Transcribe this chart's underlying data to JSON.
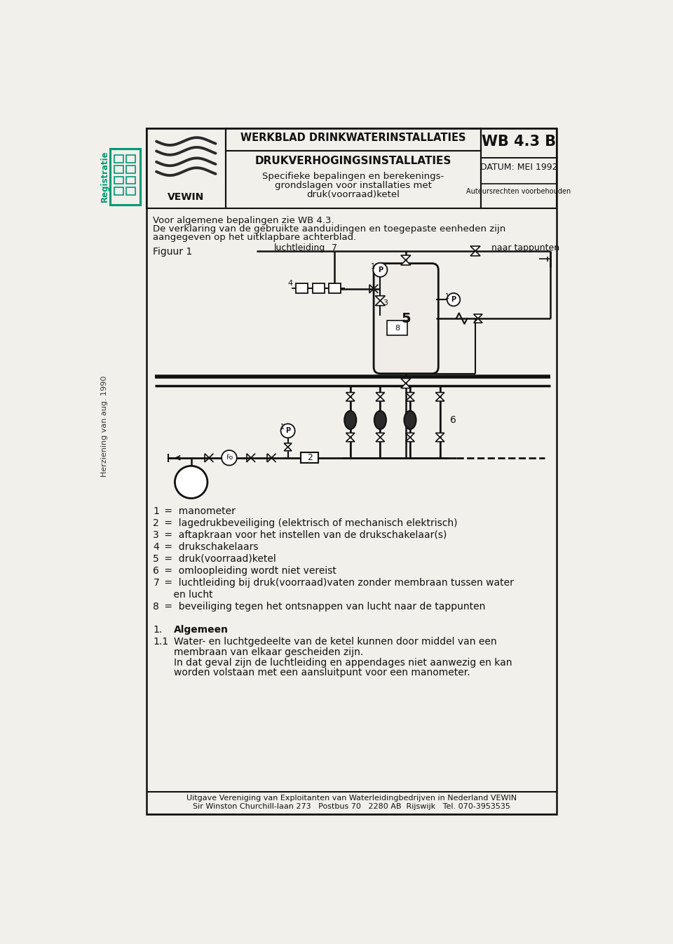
{
  "page_bg": "#f2f0eb",
  "border_color": "#111111",
  "header": {
    "wb_number": "WB 4.3 B",
    "title_top": "WERKBLAD DRINKWATERINSTALLATIES",
    "title_main": "DRUKVERHOGINGSINSTALLATIES",
    "title_sub1": "Specifieke bepalingen en berekenings-",
    "title_sub2": "grondslagen voor installaties met",
    "title_sub3": "druk(voorraad)ketel",
    "datum": "DATUM: MEI 1992",
    "auteursrechten": "Auteursrechten voorbehouden",
    "vewin": "VEWIN"
  },
  "intro_text": [
    "Voor algemene bepalingen zie WB 4.3.",
    "De verklaring van de gebruikte aanduidingen en toegepaste eenheden zijn",
    "aangegeven op het uitklapbare achterblad."
  ],
  "figuur_label": "Figuur 1",
  "luchtleiding_label": "luchtleiding",
  "label_7": "7",
  "naar_tappunten_label": "naar tappunten",
  "legend_items": [
    [
      "1",
      " =  manometer"
    ],
    [
      "2",
      " =  lagedrukbeveiliging (elektrisch of mechanisch elektrisch)"
    ],
    [
      "3",
      " =  aftapkraan voor het instellen van de drukschakelaar(s)"
    ],
    [
      "4",
      " =  drukschakelaars"
    ],
    [
      "5",
      " =  druk(voorraad)ketel"
    ],
    [
      "6",
      " =  omloopleiding wordt niet vereist"
    ],
    [
      "7",
      " =  luchtleiding bij druk(voorraad)vaten zonder membraan tussen water"
    ],
    [
      "",
      "    en lucht"
    ],
    [
      "8",
      " =  beveiliging tegen het ontsnappen van lucht naar de tappunten"
    ]
  ],
  "section1_num": "1.",
  "section1_title": "Algemeen",
  "section11_num": "1.1",
  "section11_lines": [
    "Water- en luchtgedeelte van de ketel kunnen door middel van een",
    "membraan van elkaar gescheiden zijn.",
    "In dat geval zijn de luchtleiding en appendages niet aanwezig en kan",
    "worden volstaan met een aansluitpunt voor een manometer."
  ],
  "footer_line1": "Uitgave Vereniging van Exploitanten van Waterleidingbedrijven in Nederland VEWIN",
  "footer_line2": "Sir Winston Churchill-laan 273   Postbus 70   2280 AB  Rijswijk   Tel. 070-3953535",
  "side_left_text": "Registratie",
  "side_right_text": "Herziening van aug. 1990"
}
